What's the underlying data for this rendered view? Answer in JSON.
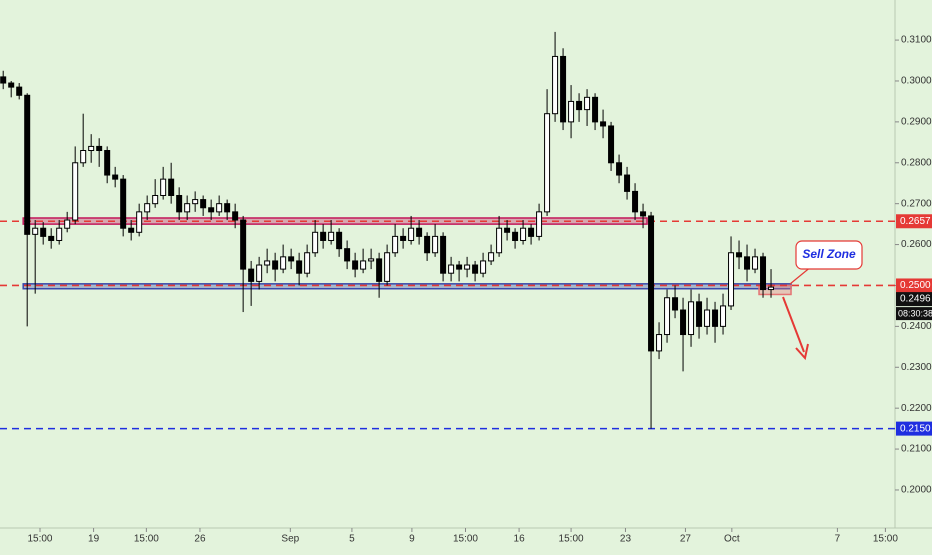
{
  "chart_data": {
    "type": "candlestick",
    "candles": [
      [
        0.301,
        0.3025,
        0.298,
        0.2995
      ],
      [
        0.2995,
        0.3,
        0.296,
        0.2985
      ],
      [
        0.2985,
        0.2995,
        0.2955,
        0.2965
      ],
      [
        0.2965,
        0.297,
        0.24,
        0.2625
      ],
      [
        0.2625,
        0.266,
        0.248,
        0.264
      ],
      [
        0.264,
        0.2655,
        0.26,
        0.262
      ],
      [
        0.262,
        0.264,
        0.259,
        0.261
      ],
      [
        0.261,
        0.266,
        0.26,
        0.264
      ],
      [
        0.264,
        0.268,
        0.263,
        0.266
      ],
      [
        0.266,
        0.284,
        0.265,
        0.28
      ],
      [
        0.28,
        0.292,
        0.279,
        0.283
      ],
      [
        0.283,
        0.287,
        0.28,
        0.284
      ],
      [
        0.284,
        0.286,
        0.279,
        0.283
      ],
      [
        0.283,
        0.284,
        0.275,
        0.277
      ],
      [
        0.277,
        0.279,
        0.274,
        0.276
      ],
      [
        0.276,
        0.277,
        0.262,
        0.264
      ],
      [
        0.264,
        0.266,
        0.261,
        0.263
      ],
      [
        0.263,
        0.27,
        0.262,
        0.268
      ],
      [
        0.268,
        0.272,
        0.266,
        0.27
      ],
      [
        0.27,
        0.276,
        0.269,
        0.272
      ],
      [
        0.272,
        0.279,
        0.271,
        0.276
      ],
      [
        0.276,
        0.28,
        0.27,
        0.272
      ],
      [
        0.272,
        0.274,
        0.266,
        0.268
      ],
      [
        0.268,
        0.272,
        0.266,
        0.27
      ],
      [
        0.27,
        0.273,
        0.268,
        0.271
      ],
      [
        0.271,
        0.272,
        0.267,
        0.269
      ],
      [
        0.269,
        0.271,
        0.266,
        0.268
      ],
      [
        0.268,
        0.272,
        0.267,
        0.27
      ],
      [
        0.27,
        0.271,
        0.266,
        0.268
      ],
      [
        0.268,
        0.27,
        0.264,
        0.266
      ],
      [
        0.266,
        0.267,
        0.2435,
        0.254
      ],
      [
        0.254,
        0.256,
        0.245,
        0.251
      ],
      [
        0.251,
        0.257,
        0.249,
        0.255
      ],
      [
        0.255,
        0.259,
        0.253,
        0.256
      ],
      [
        0.256,
        0.258,
        0.251,
        0.254
      ],
      [
        0.254,
        0.26,
        0.253,
        0.257
      ],
      [
        0.257,
        0.259,
        0.254,
        0.256
      ],
      [
        0.256,
        0.258,
        0.25,
        0.253
      ],
      [
        0.253,
        0.26,
        0.252,
        0.258
      ],
      [
        0.258,
        0.266,
        0.257,
        0.263
      ],
      [
        0.263,
        0.265,
        0.259,
        0.261
      ],
      [
        0.261,
        0.266,
        0.26,
        0.263
      ],
      [
        0.263,
        0.264,
        0.257,
        0.259
      ],
      [
        0.259,
        0.261,
        0.254,
        0.256
      ],
      [
        0.256,
        0.258,
        0.252,
        0.254
      ],
      [
        0.254,
        0.259,
        0.253,
        0.256
      ],
      [
        0.256,
        0.259,
        0.254,
        0.2565
      ],
      [
        0.2565,
        0.258,
        0.247,
        0.251
      ],
      [
        0.251,
        0.26,
        0.25,
        0.258
      ],
      [
        0.258,
        0.265,
        0.257,
        0.262
      ],
      [
        0.262,
        0.264,
        0.259,
        0.261
      ],
      [
        0.261,
        0.267,
        0.26,
        0.264
      ],
      [
        0.264,
        0.266,
        0.26,
        0.262
      ],
      [
        0.262,
        0.263,
        0.256,
        0.258
      ],
      [
        0.258,
        0.265,
        0.257,
        0.262
      ],
      [
        0.262,
        0.263,
        0.251,
        0.253
      ],
      [
        0.253,
        0.257,
        0.251,
        0.255
      ],
      [
        0.255,
        0.256,
        0.251,
        0.254
      ],
      [
        0.254,
        0.257,
        0.252,
        0.255
      ],
      [
        0.255,
        0.256,
        0.251,
        0.253
      ],
      [
        0.253,
        0.258,
        0.252,
        0.256
      ],
      [
        0.256,
        0.26,
        0.255,
        0.258
      ],
      [
        0.258,
        0.267,
        0.257,
        0.264
      ],
      [
        0.264,
        0.266,
        0.261,
        0.263
      ],
      [
        0.263,
        0.264,
        0.259,
        0.261
      ],
      [
        0.261,
        0.266,
        0.26,
        0.264
      ],
      [
        0.264,
        0.265,
        0.26,
        0.262
      ],
      [
        0.262,
        0.27,
        0.261,
        0.268
      ],
      [
        0.268,
        0.298,
        0.267,
        0.292
      ],
      [
        0.292,
        0.312,
        0.29,
        0.306
      ],
      [
        0.306,
        0.308,
        0.288,
        0.29
      ],
      [
        0.29,
        0.299,
        0.286,
        0.295
      ],
      [
        0.295,
        0.297,
        0.29,
        0.293
      ],
      [
        0.293,
        0.298,
        0.289,
        0.296
      ],
      [
        0.296,
        0.297,
        0.288,
        0.29
      ],
      [
        0.29,
        0.293,
        0.286,
        0.289
      ],
      [
        0.289,
        0.29,
        0.278,
        0.28
      ],
      [
        0.28,
        0.282,
        0.275,
        0.277
      ],
      [
        0.277,
        0.279,
        0.271,
        0.273
      ],
      [
        0.273,
        0.275,
        0.266,
        0.268
      ],
      [
        0.268,
        0.27,
        0.264,
        0.267
      ],
      [
        0.267,
        0.268,
        0.215,
        0.234
      ],
      [
        0.234,
        0.241,
        0.232,
        0.238
      ],
      [
        0.238,
        0.249,
        0.236,
        0.247
      ],
      [
        0.247,
        0.25,
        0.242,
        0.244
      ],
      [
        0.244,
        0.247,
        0.229,
        0.238
      ],
      [
        0.238,
        0.249,
        0.235,
        0.246
      ],
      [
        0.246,
        0.248,
        0.237,
        0.24
      ],
      [
        0.24,
        0.247,
        0.238,
        0.244
      ],
      [
        0.244,
        0.246,
        0.236,
        0.24
      ],
      [
        0.24,
        0.248,
        0.238,
        0.245
      ],
      [
        0.245,
        0.262,
        0.244,
        0.258
      ],
      [
        0.258,
        0.261,
        0.254,
        0.257
      ],
      [
        0.257,
        0.26,
        0.251,
        0.254
      ],
      [
        0.254,
        0.259,
        0.253,
        0.257
      ],
      [
        0.257,
        0.258,
        0.247,
        0.249
      ],
      [
        0.249,
        0.254,
        0.247,
        0.2496
      ]
    ],
    "xlim": [
      -0.4,
      111.5
    ],
    "xticks": [
      {
        "value": 4.6,
        "label": "15:00"
      },
      {
        "value": 11.3,
        "label": "19"
      },
      {
        "value": 17.9,
        "label": "15:00"
      },
      {
        "value": 24.6,
        "label": "26"
      },
      {
        "value": 35.9,
        "label": "Sep"
      },
      {
        "value": 43.6,
        "label": "5"
      },
      {
        "value": 51.1,
        "label": "9"
      },
      {
        "value": 57.8,
        "label": "15:00"
      },
      {
        "value": 64.5,
        "label": "16"
      },
      {
        "value": 71,
        "label": "15:00"
      },
      {
        "value": 77.8,
        "label": "23"
      },
      {
        "value": 85.3,
        "label": "27"
      },
      {
        "value": 91.1,
        "label": "Oct"
      },
      {
        "value": 104.3,
        "label": "7"
      },
      {
        "value": 110.3,
        "label": "15:00"
      }
    ],
    "ylim": [
      0.1907,
      0.3198
    ],
    "yticks": [
      {
        "value": 0.2,
        "label": "0.2000"
      },
      {
        "value": 0.21,
        "label": "0.2100"
      },
      {
        "value": 0.22,
        "label": "0.2200"
      },
      {
        "value": 0.23,
        "label": "0.2300"
      },
      {
        "value": 0.24,
        "label": "0.2400"
      },
      {
        "value": 0.25,
        "label": "0.2500"
      },
      {
        "value": 0.26,
        "label": "0.2600"
      },
      {
        "value": 0.27,
        "label": "0.2700"
      },
      {
        "value": 0.28,
        "label": "0.2800"
      },
      {
        "value": 0.29,
        "label": "0.2900"
      },
      {
        "value": 0.3,
        "label": "0.3000"
      },
      {
        "value": 0.31,
        "label": "0.3100"
      }
    ],
    "grid": false,
    "up_color": "#ffffff",
    "down_color": "#000000",
    "levels": [
      {
        "value": 0.2657,
        "label": "0.2657",
        "color": "#e53935"
      },
      {
        "value": 0.25,
        "label": "0.2500",
        "color": "#e53935"
      },
      {
        "value": 0.215,
        "label": "0.2150",
        "color": "#1e2ee0"
      }
    ],
    "zones": [
      {
        "start": 2.5,
        "end": 80.5,
        "low": 0.265,
        "high": 0.2665,
        "color": "#c2185b"
      },
      {
        "start": 2.5,
        "end": 98.5,
        "low": 0.2492,
        "high": 0.2504,
        "color": "#3949ab"
      },
      {
        "start": 94.5,
        "end": 98.5,
        "low": 0.2478,
        "high": 0.25,
        "color": "#e57373"
      }
    ],
    "last_price": {
      "value": 0.2496,
      "label": "0.2496"
    },
    "countdown": "08:30:38",
    "annotation": "Sell Zone"
  }
}
